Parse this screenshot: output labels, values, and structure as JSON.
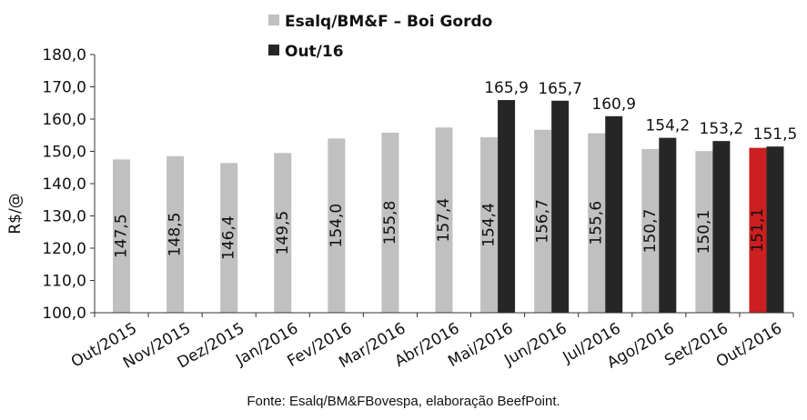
{
  "chart_data": {
    "type": "bar",
    "ylabel": "R$/@",
    "ylim": [
      100,
      180
    ],
    "yticks": [
      "100,0",
      "110,0",
      "120,0",
      "130,0",
      "140,0",
      "150,0",
      "160,0",
      "170,0",
      "180,0"
    ],
    "categories": [
      "Out/2015",
      "Nov/2015",
      "Dez/2015",
      "Jan/2016",
      "Fev/2016",
      "Mar/2016",
      "Abr/2016",
      "Mai/2016",
      "Jun/2016",
      "Jul/2016",
      "Ago/2016",
      "Set/2016",
      "Out/2016"
    ],
    "series": [
      {
        "name": "Esalq/BM&F – Boi Gordo",
        "color": "#c0c0c0",
        "highlight_color": "#cc1f1f",
        "highlight_category": "Out/2016",
        "values": [
          147.5,
          148.5,
          146.4,
          149.5,
          154.0,
          155.8,
          157.4,
          154.4,
          156.7,
          155.6,
          150.7,
          150.1,
          151.1
        ],
        "labels": [
          "147,5",
          "148,5",
          "146,4",
          "149,5",
          "154,0",
          "155,8",
          "157,4",
          "154,4",
          "156,7",
          "155,6",
          "150,7",
          "150,1",
          "151,1"
        ]
      },
      {
        "name": "Out/16",
        "color": "#262626",
        "values": [
          null,
          null,
          null,
          null,
          null,
          null,
          null,
          165.9,
          165.7,
          160.9,
          154.2,
          153.2,
          151.5
        ],
        "labels": [
          null,
          null,
          null,
          null,
          null,
          null,
          null,
          "165,9",
          "165,7",
          "160,9",
          "154,2",
          "153,2",
          "151,5"
        ]
      }
    ],
    "legend_position": "top",
    "grid": false
  },
  "source": "Fonte: Esalq/BM&FBovespa, elaboração BeefPoint."
}
